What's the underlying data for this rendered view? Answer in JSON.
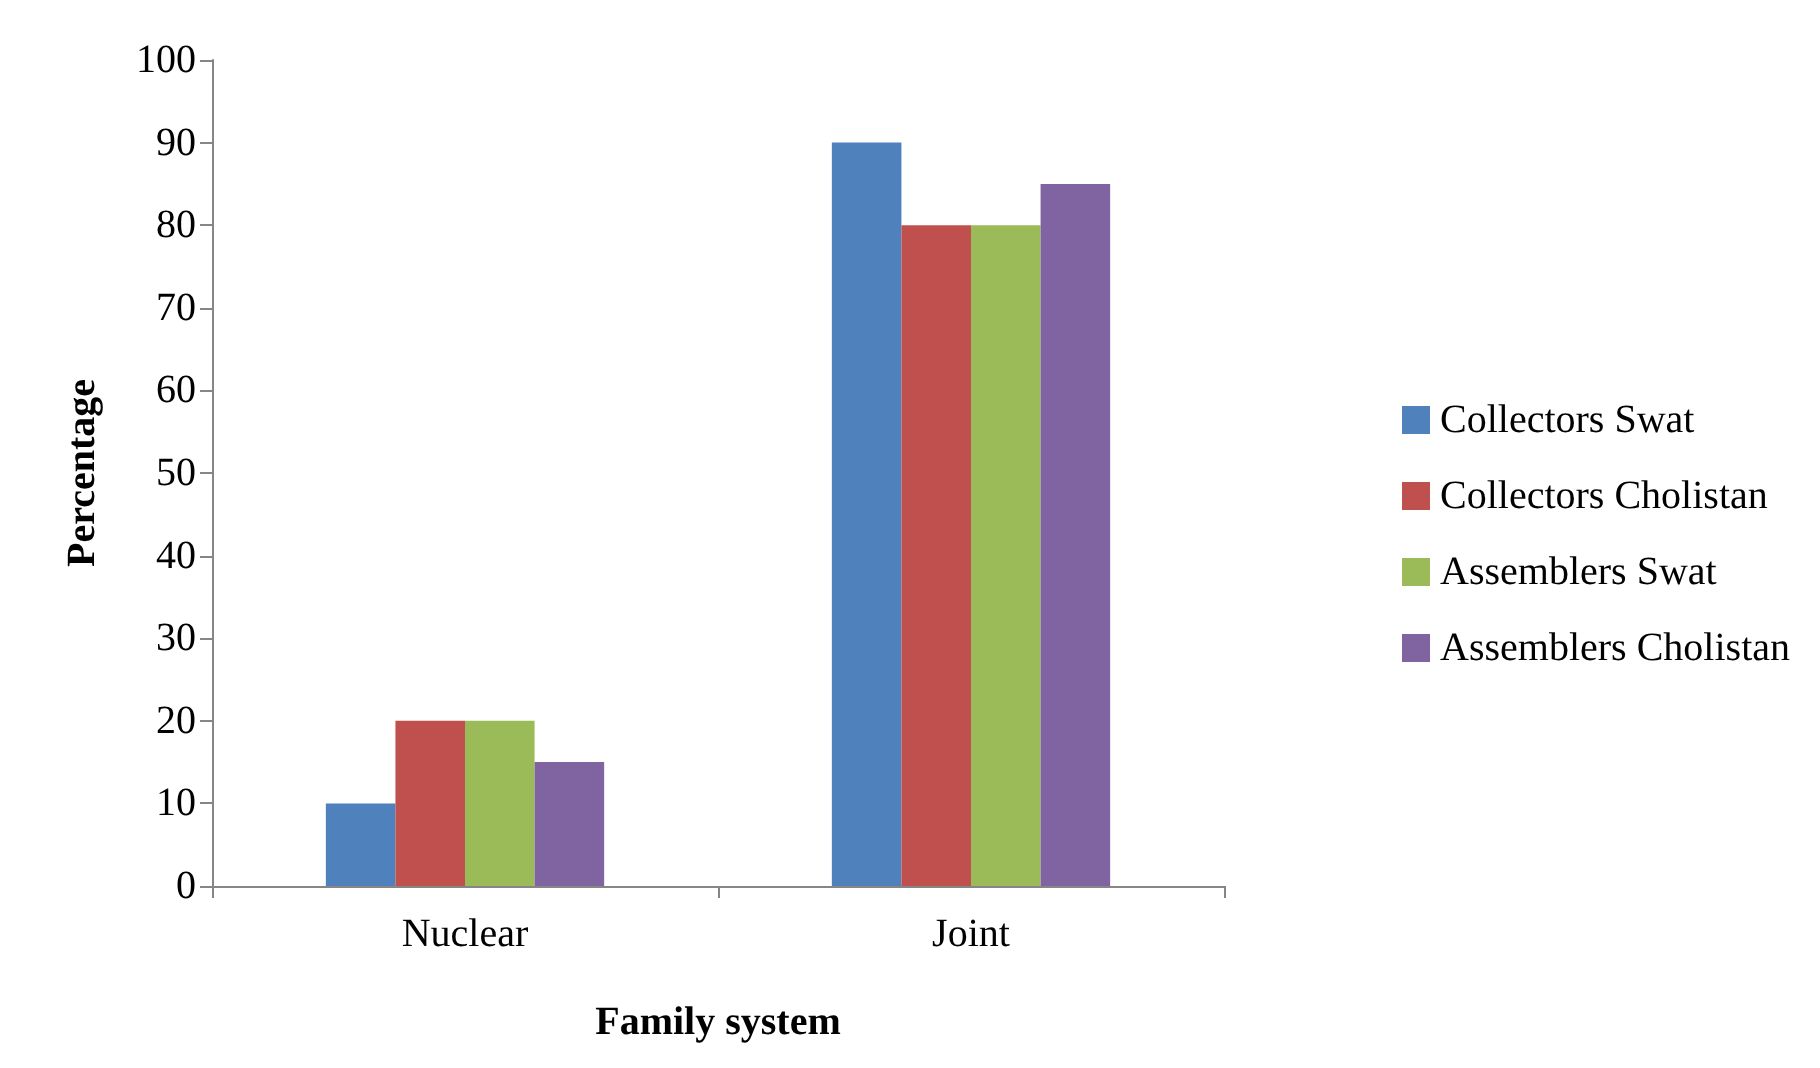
{
  "chart_data": {
    "type": "bar",
    "xlabel": "Family system",
    "ylabel": "Percentage",
    "categories": [
      "Nuclear",
      "Joint"
    ],
    "series": [
      {
        "name": "Collectors Swat",
        "color": "#4f81bd",
        "values": [
          10,
          90
        ]
      },
      {
        "name": "Collectors Cholistan",
        "color": "#c0504d",
        "values": [
          20,
          80
        ]
      },
      {
        "name": "Assemblers Swat",
        "color": "#9bbb59",
        "values": [
          20,
          80
        ]
      },
      {
        "name": "Assemblers Cholistan",
        "color": "#8064a2",
        "values": [
          15,
          85
        ]
      }
    ],
    "ylim": [
      0,
      100
    ],
    "yticks": [
      0,
      10,
      20,
      30,
      40,
      50,
      60,
      70,
      80,
      90,
      100
    ],
    "grid": false,
    "legend": "right"
  }
}
